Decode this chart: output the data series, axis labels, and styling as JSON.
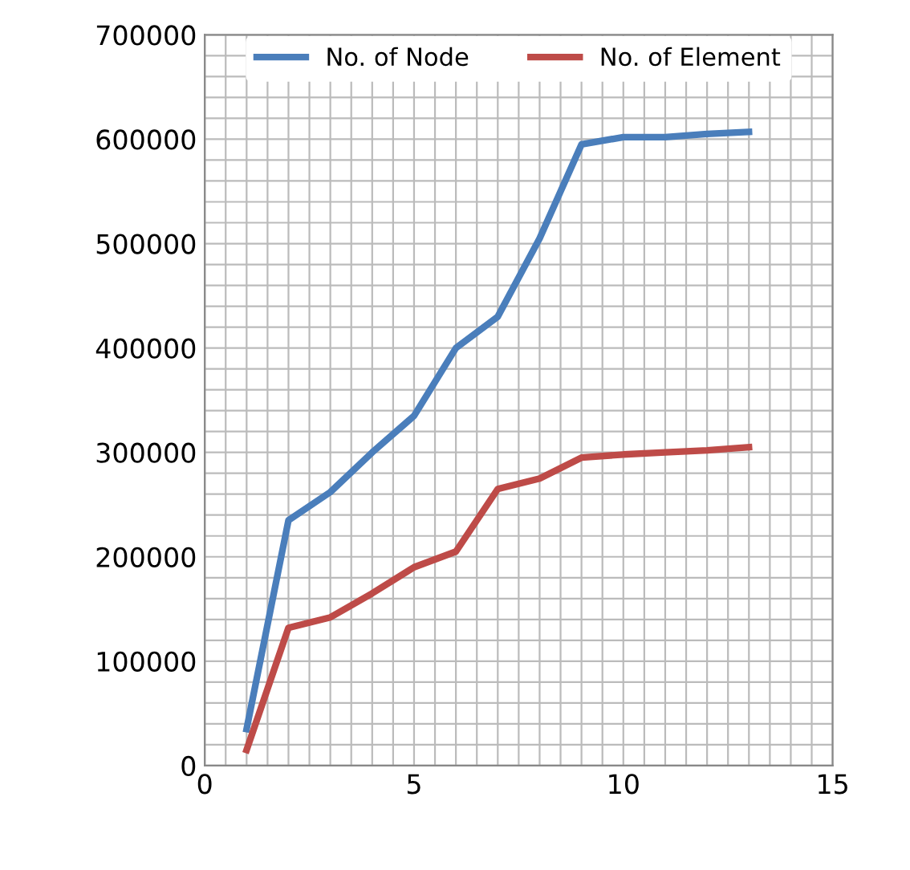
{
  "chart_data": {
    "type": "line",
    "x": [
      1,
      2,
      3,
      4,
      5,
      6,
      7,
      8,
      9,
      10,
      11,
      12,
      13
    ],
    "series": [
      {
        "name": "No. of Node",
        "color": "#4a7ebb",
        "values": [
          35000,
          235000,
          262000,
          300000,
          335000,
          400000,
          430000,
          505000,
          595000,
          602000,
          602000,
          605000,
          607000
        ]
      },
      {
        "name": "No. of Element",
        "color": "#be4b48",
        "values": [
          15000,
          132000,
          142000,
          165000,
          190000,
          205000,
          265000,
          275000,
          295000,
          298000,
          300000,
          302000,
          305000
        ]
      }
    ],
    "xlim": [
      0,
      15
    ],
    "xticks": [
      0,
      5,
      10,
      15
    ],
    "ylim": [
      0,
      700000
    ],
    "yticks": [
      0,
      100000,
      200000,
      300000,
      400000,
      500000,
      600000,
      700000
    ],
    "grid": true,
    "legend": "top",
    "marker": "none",
    "line_style": "solid"
  }
}
